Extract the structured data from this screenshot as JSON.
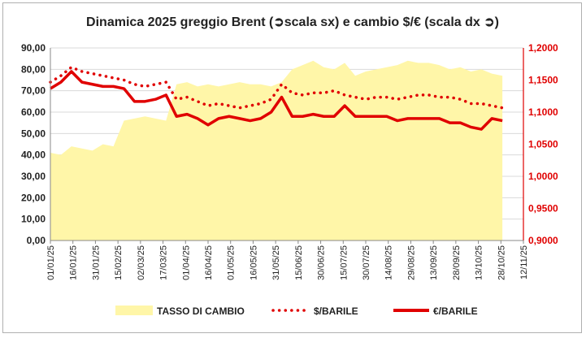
{
  "chart_data": {
    "type": "line",
    "title": "Dinamica 2025 greggio Brent (➲scala sx) e cambio $/€ (scala dx ➲)",
    "left_axis": {
      "min": 0,
      "max": 90,
      "step": 10,
      "ticks": [
        "0,00",
        "10,00",
        "20,00",
        "30,00",
        "40,00",
        "50,00",
        "60,00",
        "70,00",
        "80,00",
        "90,00"
      ]
    },
    "right_axis": {
      "min": 0.9,
      "max": 1.2,
      "step": 0.05,
      "ticks": [
        "0,9000",
        "0,9500",
        "1,0000",
        "1,0500",
        "1,1000",
        "1,1500",
        "1,2000"
      ]
    },
    "x_ticks": [
      "01/01/25",
      "16/01/25",
      "31/01/25",
      "15/02/25",
      "02/03/25",
      "17/03/25",
      "01/04/25",
      "16/04/25",
      "01/05/25",
      "16/05/25",
      "31/05/25",
      "15/06/25",
      "30/06/25",
      "15/07/25",
      "30/07/25",
      "14/08/25",
      "29/08/25",
      "13/09/25",
      "28/09/25",
      "13/10/25",
      "28/10/25",
      "12/11/25"
    ],
    "grid": "horizontal",
    "legend_position": "bottom",
    "colors": {
      "exchange_fill": "#fff6a8",
      "usd_barrel": "#e00000",
      "eur_barrel": "#e00000",
      "right_axis": "#e00000"
    },
    "series": [
      {
        "name": "TASSO DI CAMBIO",
        "style": "area",
        "axis": "left",
        "x": [
          0,
          7,
          14,
          21,
          28,
          35,
          42,
          49,
          56,
          63,
          70,
          77,
          84,
          91,
          98,
          105,
          112,
          119,
          126,
          133,
          140,
          147,
          154,
          161,
          168,
          175,
          182,
          189,
          196,
          203,
          210,
          217,
          224,
          231,
          238,
          245,
          252,
          259,
          266,
          273,
          280,
          287,
          294,
          301
        ],
        "values": [
          41,
          40,
          44,
          43,
          42,
          45,
          44,
          56,
          57,
          58,
          57,
          56,
          73,
          74,
          72,
          73,
          72,
          73,
          74,
          73,
          73,
          72,
          74,
          80,
          82,
          84,
          81,
          80,
          83,
          77,
          79,
          80,
          81,
          82,
          84,
          83,
          83,
          82,
          80,
          81,
          79,
          80,
          78,
          77
        ]
      },
      {
        "name": "$/BARILE",
        "style": "dotted",
        "axis": "left",
        "x": [
          0,
          7,
          14,
          21,
          28,
          35,
          42,
          49,
          56,
          63,
          70,
          77,
          84,
          91,
          98,
          105,
          112,
          119,
          126,
          133,
          140,
          147,
          154,
          161,
          168,
          175,
          182,
          189,
          196,
          203,
          210,
          217,
          224,
          231,
          238,
          245,
          252,
          259,
          266,
          273,
          280,
          287,
          294,
          301
        ],
        "values": [
          74,
          77,
          81,
          79,
          78,
          77,
          76,
          75,
          73,
          72,
          73,
          74,
          66,
          67,
          65,
          63,
          64,
          63,
          62,
          63,
          64,
          66,
          73,
          69,
          68,
          69,
          69,
          70,
          68,
          67,
          66,
          67,
          67,
          66,
          67,
          68,
          68,
          67,
          67,
          66,
          64,
          64,
          63,
          62
        ]
      },
      {
        "name": "€/BARILE",
        "style": "solid",
        "axis": "left",
        "x": [
          0,
          7,
          14,
          21,
          28,
          35,
          42,
          49,
          56,
          63,
          70,
          77,
          84,
          91,
          98,
          105,
          112,
          119,
          126,
          133,
          140,
          147,
          154,
          161,
          168,
          175,
          182,
          189,
          196,
          203,
          210,
          217,
          224,
          231,
          238,
          245,
          252,
          259,
          266,
          273,
          280,
          287,
          294,
          301
        ],
        "values": [
          71,
          74,
          79,
          74,
          73,
          72,
          72,
          71,
          65,
          65,
          66,
          68,
          58,
          59,
          57,
          54,
          57,
          58,
          57,
          56,
          57,
          60,
          67,
          58,
          58,
          59,
          58,
          58,
          63,
          58,
          58,
          58,
          58,
          56,
          57,
          57,
          57,
          57,
          55,
          55,
          53,
          52,
          57,
          56
        ]
      }
    ]
  }
}
